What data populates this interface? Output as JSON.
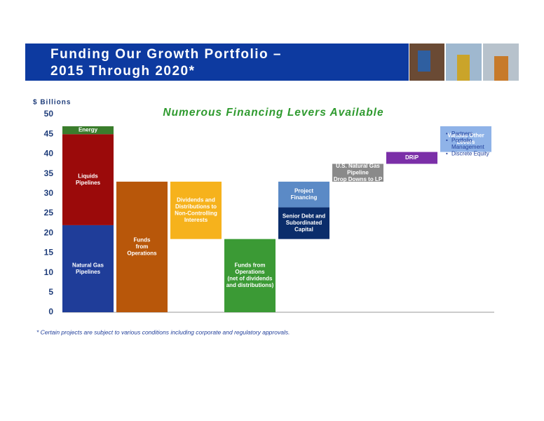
{
  "header": {
    "title_lines": [
      "Funding Our Growth Portfolio –",
      "2015 Through 2020*"
    ]
  },
  "chart_data": {
    "type": "waterfall",
    "y_axis_title": "$ Billions",
    "subtitle": "Numerous Financing Levers Available",
    "ylim": [
      0,
      50
    ],
    "yticks": [
      0,
      5,
      10,
      15,
      20,
      25,
      30,
      35,
      40,
      45,
      50
    ],
    "steps": [
      {
        "reset": true,
        "segments": [
          {
            "label": [
              "Natural Gas",
              "Pipelines"
            ],
            "value": 22,
            "color": "#1f3d99",
            "text_color": "#ffffff"
          },
          {
            "label": [
              "Liquids",
              "Pipelines"
            ],
            "value": 23,
            "color": "#9b0a0a",
            "text_color": "#ffffff"
          },
          {
            "label": [
              "Energy"
            ],
            "value": 2,
            "color": "#3a7d2c",
            "text_color": "#ffffff"
          }
        ]
      },
      {
        "reset": true,
        "segments": [
          {
            "label": [
              "Funds",
              "from",
              "Operations"
            ],
            "value": 33,
            "color": "#b8570a",
            "text_color": "#ffffff"
          }
        ]
      },
      {
        "reset": false,
        "segments": [
          {
            "label": [
              "Dividends and",
              "Distributions to",
              "Non-Controlling",
              "Interests"
            ],
            "value": -14.5,
            "color": "#f6b21c",
            "text_color": "#ffffff"
          }
        ]
      },
      {
        "reset": true,
        "segments": [
          {
            "label": [
              "Funds from",
              "Operations",
              "(net of dividends",
              "and distributions)"
            ],
            "value": 18.5,
            "color": "#3b9a35",
            "text_color": "#ffffff"
          }
        ]
      },
      {
        "reset": false,
        "segments": [
          {
            "label": [
              "Senior Debt and",
              "Subordinated",
              "Capital"
            ],
            "value": 8,
            "color": "#0b2d6b",
            "text_color": "#ffffff"
          },
          {
            "label": [
              "Project",
              "Financing"
            ],
            "value": 6.5,
            "color": "#5b8ac6",
            "text_color": "#ffffff"
          }
        ]
      },
      {
        "reset": false,
        "segments": [
          {
            "label": [
              "U.S. Natural Gas",
              "Pipeline",
              "Drop Downs to LP"
            ],
            "value": 4.5,
            "color": "#8a8a8a",
            "text_color": "#ffffff"
          }
        ]
      },
      {
        "reset": false,
        "segments": [
          {
            "label": [
              "DRiP"
            ],
            "value": 3,
            "color": "#7b2fa8",
            "text_color": "#ffffff"
          }
        ]
      },
      {
        "reset": false,
        "segments": [
          {
            "label": [
              "Various Other",
              "Levers"
            ],
            "value": 6.5,
            "color": "#8fb3e8",
            "text_color": "#ffffff"
          }
        ],
        "notes": [
          [
            "Partners"
          ],
          [
            "Portfolio",
            "Management"
          ],
          [
            "Discrete Equity"
          ]
        ]
      }
    ],
    "footnote": "*  Certain projects are subject to various conditions including corporate and regulatory approvals."
  }
}
